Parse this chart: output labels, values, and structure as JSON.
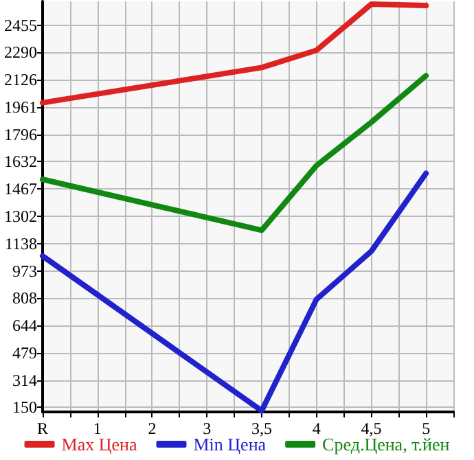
{
  "chart_data": {
    "type": "line",
    "categories": [
      "R",
      "1",
      "2",
      "3",
      "3,5",
      "4",
      "4,5",
      "5"
    ],
    "series": [
      {
        "name": "Max Цена",
        "color": "#dd2222",
        "values": [
          1987,
          null,
          null,
          null,
          2199,
          2303,
          2581,
          2573
        ]
      },
      {
        "name": "Min Цена",
        "color": "#2222cc",
        "values": [
          1063,
          null,
          null,
          null,
          130,
          802,
          1091,
          1561
        ]
      },
      {
        "name": "Сред.Цена, т.йен",
        "color": "#118811",
        "values": [
          1525,
          null,
          null,
          null,
          1218,
          1608,
          1869,
          2150
        ]
      }
    ],
    "ylim": [
      123,
      2598
    ],
    "yticks": [
      150,
      314,
      479,
      644,
      808,
      973,
      1138,
      1302,
      1467,
      1632,
      1796,
      1961,
      2126,
      2290,
      2455
    ],
    "grid": true,
    "legend": "bottom",
    "marker": "none",
    "line_style": "solid"
  }
}
